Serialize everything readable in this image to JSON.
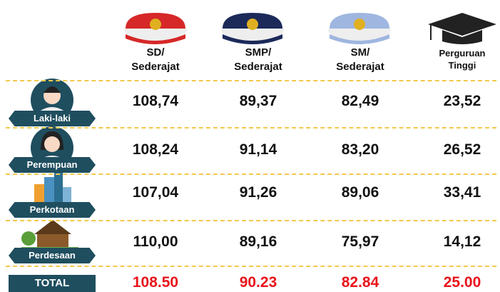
{
  "table": {
    "headers": [
      [
        "SD/",
        "Sederajat"
      ],
      [
        "SMP/",
        "Sederajat"
      ],
      [
        "SM/",
        "Sederajat"
      ],
      [
        "Perguruan",
        "Tinggi"
      ]
    ],
    "rows": [
      {
        "label": "Laki-laki",
        "values": [
          "108,74",
          "89,37",
          "82,49",
          "23,52"
        ]
      },
      {
        "label": "Perempuan",
        "values": [
          "108,24",
          "91,14",
          "83,20",
          "26,52"
        ]
      },
      {
        "label": "Perkotaan",
        "values": [
          "107,04",
          "91,26",
          "89,06",
          "33,41"
        ]
      },
      {
        "label": "Perdesaan",
        "values": [
          "110,00",
          "89,16",
          "75,97",
          "14,12"
        ]
      },
      {
        "label": "TOTAL",
        "values": [
          "108.50",
          "90.23",
          "82.84",
          "25.00"
        ]
      }
    ]
  }
}
